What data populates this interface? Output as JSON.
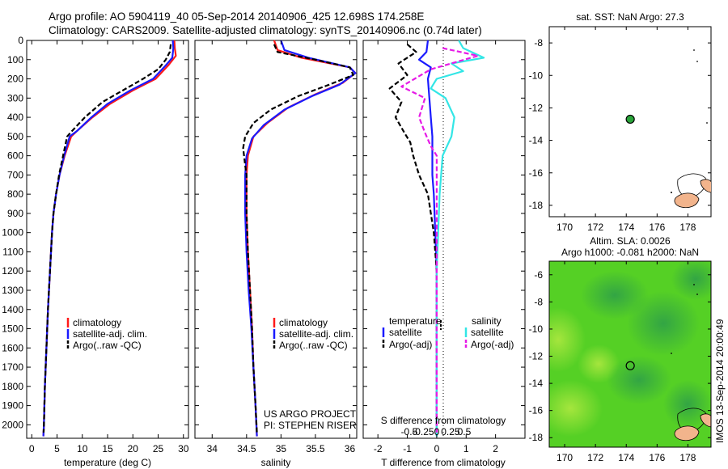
{
  "header": {
    "title_line1": "Argo profile: AO 5904119_40 05-Sep-2014 20140906_425 12.698S 174.258E",
    "title_line2": "Climatology: CARS2009. Satellite-adjusted climatology: synTS_20140906.nc (0.74d later)"
  },
  "colors": {
    "climatology": "#ff1a1a",
    "satellite": "#1a1aff",
    "argo": "#000000",
    "sat_salinity": "#33e6e6",
    "argo_salinity": "#e61ae6",
    "land": "#f2b48c",
    "ocean_green": "#55d025",
    "ocean_blue": "#2fae3c",
    "map_bg": "#ffffff"
  },
  "chart_data": [
    {
      "type": "line",
      "id": "temperature",
      "xlabel": "temperature (deg C)",
      "ylabel": "",
      "xlim": [
        -1,
        31
      ],
      "ylim": [
        2070,
        0
      ],
      "xticks": [
        "0",
        "5",
        "10",
        "15",
        "20",
        "25",
        "30"
      ],
      "xtick_values": [
        0,
        5,
        10,
        15,
        20,
        25,
        30
      ],
      "yticks": [
        "0",
        "100",
        "200",
        "300",
        "400",
        "500",
        "600",
        "700",
        "800",
        "900",
        "1000",
        "1100",
        "1200",
        "1300",
        "1400",
        "1500",
        "1600",
        "1700",
        "1800",
        "1900",
        "2000"
      ],
      "ytick_values": [
        0,
        100,
        200,
        300,
        400,
        500,
        600,
        700,
        800,
        900,
        1000,
        1100,
        1200,
        1300,
        1400,
        1500,
        1600,
        1700,
        1800,
        1900,
        2000
      ],
      "legend": [
        "climatology",
        "satellite-adj. clim.",
        "Argo(..raw -QC)"
      ],
      "series": [
        {
          "name": "climatology",
          "color": "red",
          "dashed": false,
          "points": [
            [
              28.2,
              0
            ],
            [
              28.3,
              40
            ],
            [
              28.5,
              80
            ],
            [
              27.0,
              130
            ],
            [
              24.5,
              200
            ],
            [
              20.0,
              260
            ],
            [
              15.5,
              330
            ],
            [
              12.0,
              400
            ],
            [
              9.0,
              470
            ],
            [
              7.8,
              500
            ],
            [
              6.5,
              600
            ],
            [
              5.5,
              700
            ],
            [
              4.8,
              800
            ],
            [
              4.3,
              900
            ],
            [
              4.0,
              1000
            ],
            [
              3.6,
              1200
            ],
            [
              3.2,
              1400
            ],
            [
              2.9,
              1600
            ],
            [
              2.6,
              1800
            ],
            [
              2.4,
              2000
            ],
            [
              2.3,
              2060
            ]
          ]
        },
        {
          "name": "satellite-adj. clim.",
          "color": "blue",
          "dashed": false,
          "points": [
            [
              27.9,
              0
            ],
            [
              28.0,
              40
            ],
            [
              27.8,
              90
            ],
            [
              26.5,
              130
            ],
            [
              24.0,
              200
            ],
            [
              19.5,
              260
            ],
            [
              15.0,
              330
            ],
            [
              11.8,
              400
            ],
            [
              9.0,
              470
            ],
            [
              7.5,
              500
            ],
            [
              6.4,
              600
            ],
            [
              5.5,
              700
            ],
            [
              4.8,
              800
            ],
            [
              4.3,
              900
            ],
            [
              4.0,
              1000
            ],
            [
              3.6,
              1200
            ],
            [
              3.2,
              1400
            ],
            [
              2.9,
              1600
            ],
            [
              2.6,
              1800
            ],
            [
              2.4,
              2000
            ],
            [
              2.3,
              2060
            ]
          ]
        },
        {
          "name": "Argo(..raw -QC)",
          "color": "black",
          "dashed": true,
          "points": [
            [
              27.5,
              20
            ],
            [
              27.3,
              60
            ],
            [
              26.5,
              100
            ],
            [
              25.0,
              150
            ],
            [
              22.0,
              200
            ],
            [
              18.0,
              260
            ],
            [
              14.0,
              320
            ],
            [
              10.5,
              400
            ],
            [
              8.0,
              470
            ],
            [
              7.0,
              500
            ],
            [
              6.2,
              600
            ],
            [
              5.4,
              700
            ],
            [
              4.8,
              800
            ],
            [
              4.3,
              900
            ],
            [
              4.0,
              1000
            ],
            [
              3.6,
              1200
            ],
            [
              3.2,
              1400
            ],
            [
              2.9,
              1600
            ],
            [
              2.6,
              1800
            ],
            [
              2.4,
              2000
            ],
            [
              2.35,
              2040
            ]
          ]
        }
      ]
    },
    {
      "type": "line",
      "id": "salinity",
      "xlabel": "salinity",
      "xlim": [
        33.75,
        36.1
      ],
      "ylim": [
        2070,
        0
      ],
      "xticks": [
        "34",
        "34.5",
        "35",
        "35.5",
        "36"
      ],
      "xtick_values": [
        34,
        34.5,
        35,
        35.5,
        36
      ],
      "legend": [
        "climatology",
        "satellite-adj. clim.",
        "Argo(..raw -QC)"
      ],
      "annotations": [
        "US ARGO PROJECT",
        "PI: STEPHEN RISER"
      ],
      "series": [
        {
          "name": "climatology",
          "color": "red",
          "dashed": false,
          "points": [
            [
              34.9,
              0
            ],
            [
              34.95,
              50
            ],
            [
              35.3,
              90
            ],
            [
              36.0,
              140
            ],
            [
              36.08,
              170
            ],
            [
              35.9,
              220
            ],
            [
              35.5,
              280
            ],
            [
              35.1,
              350
            ],
            [
              34.8,
              430
            ],
            [
              34.6,
              500
            ],
            [
              34.52,
              600
            ],
            [
              34.5,
              700
            ],
            [
              34.5,
              900
            ],
            [
              34.52,
              1100
            ],
            [
              34.55,
              1300
            ],
            [
              34.58,
              1500
            ],
            [
              34.6,
              1700
            ],
            [
              34.63,
              1900
            ],
            [
              34.65,
              2060
            ]
          ]
        },
        {
          "name": "satellite-adj. clim.",
          "color": "blue",
          "dashed": false,
          "points": [
            [
              35.0,
              0
            ],
            [
              35.05,
              50
            ],
            [
              35.4,
              90
            ],
            [
              36.0,
              140
            ],
            [
              36.08,
              170
            ],
            [
              35.85,
              230
            ],
            [
              35.45,
              290
            ],
            [
              35.05,
              360
            ],
            [
              34.75,
              440
            ],
            [
              34.58,
              510
            ],
            [
              34.5,
              600
            ],
            [
              34.48,
              700
            ],
            [
              34.48,
              900
            ],
            [
              34.5,
              1100
            ],
            [
              34.53,
              1300
            ],
            [
              34.57,
              1500
            ],
            [
              34.6,
              1700
            ],
            [
              34.63,
              1900
            ],
            [
              34.65,
              2060
            ]
          ]
        },
        {
          "name": "Argo(..raw -QC)",
          "color": "black",
          "dashed": true,
          "points": [
            [
              34.9,
              20
            ],
            [
              34.95,
              60
            ],
            [
              35.5,
              100
            ],
            [
              36.0,
              140
            ],
            [
              36.05,
              180
            ],
            [
              35.7,
              230
            ],
            [
              35.25,
              290
            ],
            [
              34.85,
              360
            ],
            [
              34.6,
              430
            ],
            [
              34.48,
              500
            ],
            [
              34.45,
              560
            ],
            [
              34.48,
              650
            ],
            [
              34.5,
              700
            ],
            [
              34.5,
              900
            ],
            [
              34.52,
              1100
            ],
            [
              34.55,
              1300
            ],
            [
              34.58,
              1500
            ],
            [
              34.6,
              1700
            ],
            [
              34.63,
              1900
            ],
            [
              34.65,
              2040
            ]
          ]
        }
      ]
    },
    {
      "type": "line",
      "id": "difference",
      "xlabel": "T difference from climatology",
      "top_label": "S difference from climatology",
      "xlim": [
        -2.5,
        3
      ],
      "ylim": [
        2070,
        0
      ],
      "xticks": [
        "-2",
        "-1",
        "0",
        "1",
        "2"
      ],
      "xtick_values": [
        -2,
        -1,
        0,
        1,
        2
      ],
      "s_ticks": [
        "-0.5",
        "-0.25",
        "0",
        "0.25",
        "0.5"
      ],
      "s_tick_values": [
        -0.5,
        -0.25,
        0,
        0.25,
        0.5
      ],
      "legend_titles": [
        "temperature",
        "salinity"
      ],
      "legend": [
        "satellite",
        "Argo(-adj)",
        "satellite",
        "Argo(-adj)"
      ],
      "series": [
        {
          "name": "satellite",
          "group": "temperature",
          "color": "blue",
          "dashed": false,
          "points": [
            [
              -0.3,
              0
            ],
            [
              -0.35,
              60
            ],
            [
              -0.6,
              100
            ],
            [
              -0.2,
              140
            ],
            [
              -0.3,
              200
            ],
            [
              -0.25,
              300
            ],
            [
              -0.2,
              400
            ],
            [
              -0.15,
              500
            ],
            [
              -0.15,
              600
            ],
            [
              -0.15,
              700
            ],
            [
              -0.1,
              800
            ],
            [
              -0.05,
              1000
            ],
            [
              0,
              1200
            ],
            [
              0,
              2060
            ]
          ]
        },
        {
          "name": "Argo(-adj)",
          "group": "temperature",
          "color": "black",
          "dashed": true,
          "points": [
            [
              -1.0,
              20
            ],
            [
              -0.7,
              60
            ],
            [
              -1.3,
              120
            ],
            [
              -1.0,
              180
            ],
            [
              -1.6,
              250
            ],
            [
              -1.2,
              320
            ],
            [
              -1.4,
              400
            ],
            [
              -1.1,
              480
            ],
            [
              -0.9,
              530
            ],
            [
              -0.8,
              600
            ],
            [
              -0.6,
              700
            ],
            [
              -0.3,
              800
            ],
            [
              -0.1,
              1000
            ],
            [
              0,
              1200
            ],
            [
              0,
              2040
            ]
          ]
        },
        {
          "name": "satellite",
          "group": "salinity",
          "color": "cyan",
          "dashed": false,
          "points": [
            [
              0.75,
              0
            ],
            [
              0.9,
              40
            ],
            [
              1.6,
              90
            ],
            [
              0.5,
              120
            ],
            [
              0.9,
              160
            ],
            [
              0.0,
              200
            ],
            [
              -0.2,
              250
            ],
            [
              0.3,
              300
            ],
            [
              0.6,
              400
            ],
            [
              0.5,
              500
            ],
            [
              0.2,
              600
            ],
            [
              0.1,
              800
            ],
            [
              0.05,
              1000
            ],
            [
              0,
              1200
            ],
            [
              0,
              2060
            ]
          ]
        },
        {
          "name": "Argo(-adj)",
          "group": "salinity",
          "color": "magenta",
          "dashed": true,
          "points": [
            [
              0.2,
              40
            ],
            [
              1.4,
              80
            ],
            [
              -0.2,
              150
            ],
            [
              -1.2,
              240
            ],
            [
              -0.4,
              300
            ],
            [
              -0.6,
              400
            ],
            [
              -0.4,
              480
            ],
            [
              -0.2,
              550
            ],
            [
              0,
              600
            ],
            [
              0,
              2040
            ]
          ]
        }
      ]
    },
    {
      "type": "scatter",
      "id": "sst_map",
      "title": "sat. SST: NaN Argo: 27.3",
      "xlim": [
        169,
        179.5
      ],
      "ylim": [
        -18.7,
        -7
      ],
      "xticks": [
        "170",
        "172",
        "174",
        "176",
        "178"
      ],
      "xtick_values": [
        170,
        172,
        174,
        176,
        178
      ],
      "yticks": [
        "-8",
        "-10",
        "-12",
        "-14",
        "-16",
        "-18"
      ],
      "ytick_values": [
        -8,
        -10,
        -12,
        -14,
        -16,
        -18
      ],
      "marker": {
        "lon": 174.258,
        "lat": -12.698
      }
    },
    {
      "type": "heatmap",
      "id": "sla_map",
      "title_line1": "Altim. SLA: 0.0026",
      "title_line2": "Argo h1000: -0.081 h2000: NaN",
      "xlim": [
        169,
        179.5
      ],
      "ylim": [
        -18.7,
        -5
      ],
      "xticks": [
        "170",
        "172",
        "174",
        "176",
        "178"
      ],
      "xtick_values": [
        170,
        172,
        174,
        176,
        178
      ],
      "yticks": [
        "-6",
        "-8",
        "-10",
        "-12",
        "-14",
        "-16",
        "-18"
      ],
      "ytick_values": [
        -6,
        -8,
        -10,
        -12,
        -14,
        -16,
        -18
      ],
      "marker": {
        "lon": 174.258,
        "lat": -12.698
      },
      "side_label": "IMOS 13-Sep-2014 20:00:49"
    }
  ]
}
